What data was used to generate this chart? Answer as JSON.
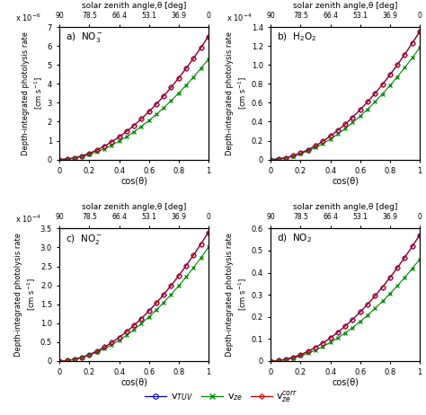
{
  "cos_theta": [
    0.0,
    0.05,
    0.1,
    0.15,
    0.2,
    0.25,
    0.3,
    0.35,
    0.4,
    0.45,
    0.5,
    0.55,
    0.6,
    0.65,
    0.7,
    0.75,
    0.8,
    0.85,
    0.9,
    0.95,
    1.0
  ],
  "panels": [
    {
      "label": "a)",
      "species": "NO$_3^-$",
      "scale_str": "x 10$^{-6}$",
      "ylim": [
        0,
        7
      ],
      "yticks": [
        0,
        1,
        2,
        3,
        4,
        5,
        6,
        7
      ],
      "yticklabels": [
        "0",
        "1",
        "2",
        "3",
        "4",
        "5",
        "6",
        "7"
      ],
      "vTUV_factor": 6.5,
      "vze_factor": 5.3,
      "vcorr_factor": 6.5,
      "power": 1.85
    },
    {
      "label": "b)",
      "species": "H$_2$O$_2$",
      "scale_str": "x 10$^{-4}$",
      "ylim": [
        0,
        1.4
      ],
      "yticks": [
        0,
        0.2,
        0.4,
        0.6,
        0.8,
        1.0,
        1.2,
        1.4
      ],
      "yticklabels": [
        "0",
        "0.2",
        "0.4",
        "0.6",
        "0.8",
        "1.0",
        "1.2",
        "1.4"
      ],
      "vTUV_factor": 1.35,
      "vze_factor": 1.18,
      "vcorr_factor": 1.35,
      "power": 1.85
    },
    {
      "label": "c)",
      "species": "NO$_2^-$",
      "scale_str": "x 10$^{-4}$",
      "ylim": [
        0,
        3.5
      ],
      "yticks": [
        0,
        0.5,
        1.0,
        1.5,
        2.0,
        2.5,
        3.0,
        3.5
      ],
      "yticklabels": [
        "0",
        "0.5",
        "1.0",
        "1.5",
        "2.0",
        "2.5",
        "3.0",
        "3.5"
      ],
      "vTUV_factor": 3.4,
      "vze_factor": 3.0,
      "vcorr_factor": 3.4,
      "power": 1.85
    },
    {
      "label": "d)",
      "species": "NO$_2$",
      "scale_str": "",
      "ylim": [
        0,
        0.6
      ],
      "yticks": [
        0,
        0.1,
        0.2,
        0.3,
        0.4,
        0.5,
        0.6
      ],
      "yticklabels": [
        "0",
        "0.1",
        "0.2",
        "0.3",
        "0.4",
        "0.5",
        "0.6"
      ],
      "vTUV_factor": 0.57,
      "vze_factor": 0.46,
      "vcorr_factor": 0.57,
      "power": 1.85
    }
  ],
  "color_TUV": "#0000cc",
  "color_ze": "#008800",
  "color_corr": "#cc0000",
  "xlabel": "cos(θ)",
  "top_xlabel": "solar zenith angle,θ [deg]",
  "ylabel_main": "Depth-integrated photolysis rate",
  "ylabel_units": "[cm s$^{-1}$]",
  "legend_labels": [
    "v$_{TUV}$",
    "v$_{ze}$",
    "v$_{ze}^{corr}$"
  ],
  "bg_color": "#ffffff"
}
